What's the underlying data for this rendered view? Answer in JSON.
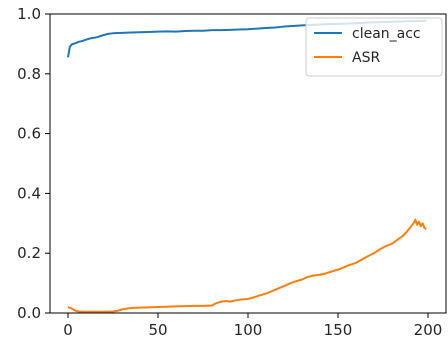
{
  "chart_data": {
    "type": "line",
    "title": "",
    "xlabel": "",
    "ylabel": "",
    "xlim": [
      -10,
      210
    ],
    "ylim": [
      0.0,
      1.0
    ],
    "x_ticks": [
      0,
      50,
      100,
      150,
      200
    ],
    "y_ticks": [
      0.0,
      0.2,
      0.4,
      0.6,
      0.8,
      1.0
    ],
    "x_tick_labels": [
      "0",
      "50",
      "100",
      "150",
      "200"
    ],
    "y_tick_labels": [
      "0.0",
      "0.2",
      "0.4",
      "0.6",
      "0.8",
      "1.0"
    ],
    "grid": false,
    "legend_position": "top-right",
    "series": [
      {
        "name": "clean_acc",
        "color": "#1f77b4",
        "points": [
          [
            0,
            0.855
          ],
          [
            1,
            0.89
          ],
          [
            2,
            0.898
          ],
          [
            4,
            0.902
          ],
          [
            6,
            0.907
          ],
          [
            8,
            0.91
          ],
          [
            10,
            0.914
          ],
          [
            12,
            0.918
          ],
          [
            14,
            0.92
          ],
          [
            16,
            0.922
          ],
          [
            18,
            0.926
          ],
          [
            20,
            0.93
          ],
          [
            22,
            0.933
          ],
          [
            24,
            0.935
          ],
          [
            26,
            0.936
          ],
          [
            30,
            0.937
          ],
          [
            35,
            0.938
          ],
          [
            40,
            0.939
          ],
          [
            45,
            0.94
          ],
          [
            50,
            0.941
          ],
          [
            55,
            0.942
          ],
          [
            60,
            0.941
          ],
          [
            65,
            0.943
          ],
          [
            70,
            0.944
          ],
          [
            75,
            0.944
          ],
          [
            80,
            0.946
          ],
          [
            85,
            0.946
          ],
          [
            90,
            0.947
          ],
          [
            95,
            0.948
          ],
          [
            100,
            0.949
          ],
          [
            105,
            0.951
          ],
          [
            110,
            0.953
          ],
          [
            115,
            0.955
          ],
          [
            120,
            0.958
          ],
          [
            125,
            0.96
          ],
          [
            130,
            0.962
          ],
          [
            135,
            0.963
          ],
          [
            140,
            0.965
          ],
          [
            145,
            0.966
          ],
          [
            150,
            0.967
          ],
          [
            155,
            0.968
          ],
          [
            160,
            0.969
          ],
          [
            165,
            0.971
          ],
          [
            170,
            0.972
          ],
          [
            175,
            0.973
          ],
          [
            180,
            0.974
          ],
          [
            185,
            0.975
          ],
          [
            190,
            0.976
          ],
          [
            195,
            0.976
          ],
          [
            199,
            0.977
          ]
        ]
      },
      {
        "name": "ASR",
        "color": "#ff7f0e",
        "points": [
          [
            0,
            0.02
          ],
          [
            2,
            0.015
          ],
          [
            4,
            0.008
          ],
          [
            6,
            0.005
          ],
          [
            10,
            0.004
          ],
          [
            15,
            0.004
          ],
          [
            20,
            0.004
          ],
          [
            25,
            0.005
          ],
          [
            28,
            0.008
          ],
          [
            30,
            0.012
          ],
          [
            33,
            0.015
          ],
          [
            36,
            0.017
          ],
          [
            40,
            0.018
          ],
          [
            45,
            0.019
          ],
          [
            50,
            0.02
          ],
          [
            55,
            0.021
          ],
          [
            60,
            0.022
          ],
          [
            65,
            0.023
          ],
          [
            70,
            0.024
          ],
          [
            75,
            0.024
          ],
          [
            80,
            0.025
          ],
          [
            82,
            0.032
          ],
          [
            85,
            0.038
          ],
          [
            88,
            0.04
          ],
          [
            90,
            0.038
          ],
          [
            93,
            0.042
          ],
          [
            96,
            0.045
          ],
          [
            100,
            0.047
          ],
          [
            103,
            0.052
          ],
          [
            106,
            0.058
          ],
          [
            110,
            0.065
          ],
          [
            113,
            0.072
          ],
          [
            116,
            0.08
          ],
          [
            120,
            0.09
          ],
          [
            123,
            0.098
          ],
          [
            126,
            0.105
          ],
          [
            130,
            0.112
          ],
          [
            133,
            0.12
          ],
          [
            136,
            0.125
          ],
          [
            140,
            0.128
          ],
          [
            143,
            0.132
          ],
          [
            146,
            0.138
          ],
          [
            150,
            0.145
          ],
          [
            153,
            0.152
          ],
          [
            156,
            0.16
          ],
          [
            160,
            0.168
          ],
          [
            163,
            0.178
          ],
          [
            166,
            0.188
          ],
          [
            170,
            0.2
          ],
          [
            173,
            0.212
          ],
          [
            176,
            0.222
          ],
          [
            180,
            0.232
          ],
          [
            183,
            0.245
          ],
          [
            186,
            0.258
          ],
          [
            188,
            0.27
          ],
          [
            190,
            0.285
          ],
          [
            192,
            0.3
          ],
          [
            193,
            0.312
          ],
          [
            194,
            0.295
          ],
          [
            195,
            0.305
          ],
          [
            196,
            0.29
          ],
          [
            197,
            0.3
          ],
          [
            198,
            0.285
          ],
          [
            199,
            0.28
          ]
        ]
      }
    ]
  }
}
